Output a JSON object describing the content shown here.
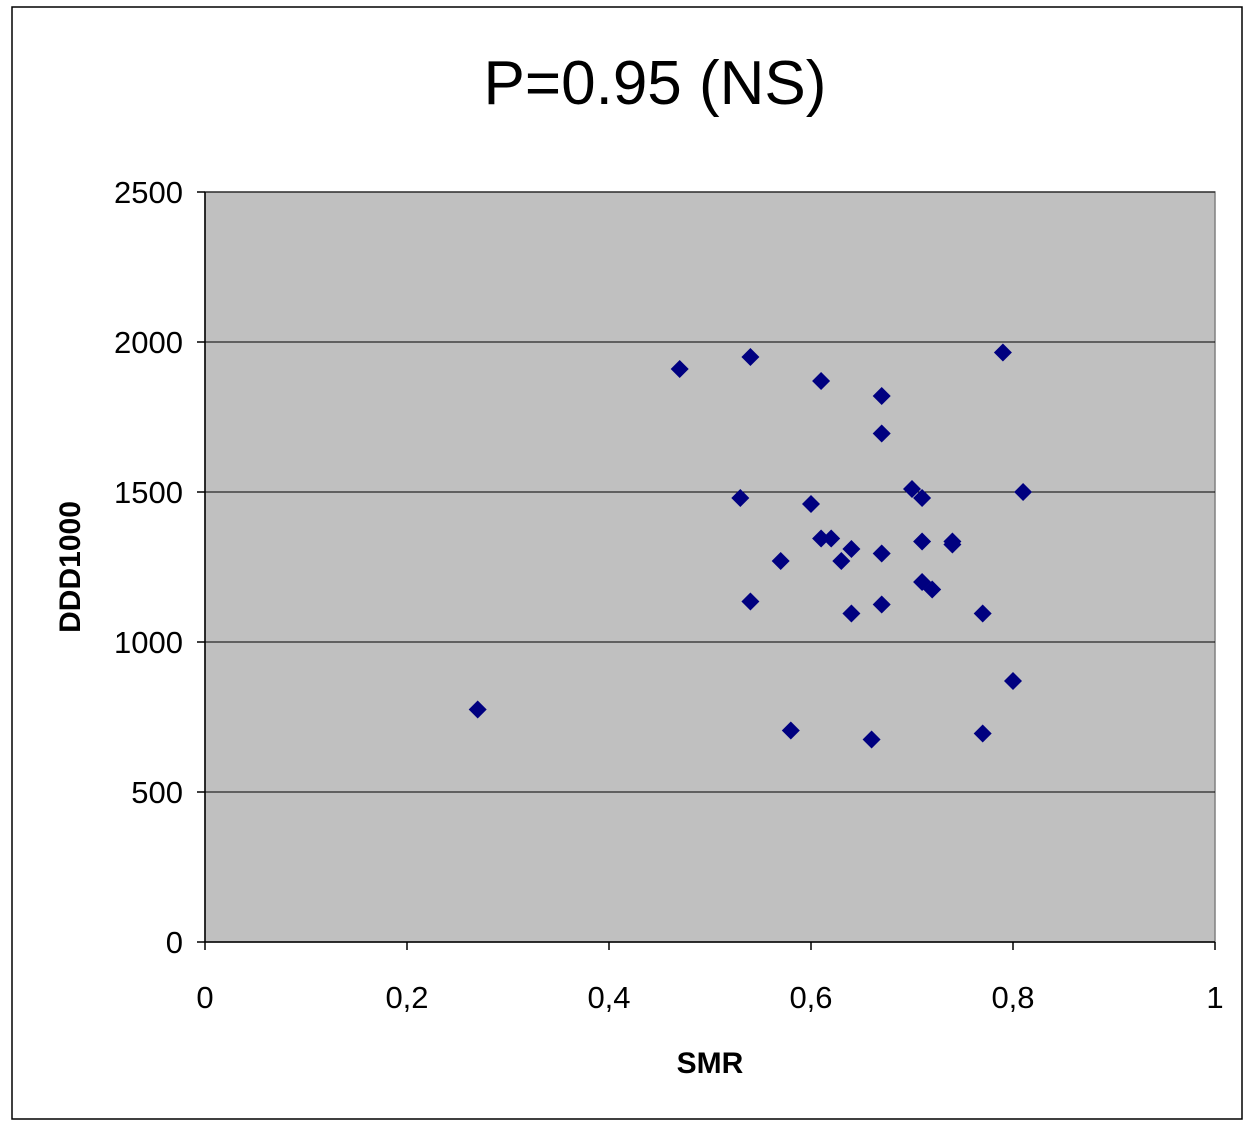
{
  "chart_data": {
    "type": "scatter",
    "title": "P=0.95 (NS)",
    "xlabel": "SMR",
    "ylabel": "DDD1000",
    "xlim": [
      0,
      1
    ],
    "ylim": [
      0,
      2500
    ],
    "xticks": [
      "0",
      "0,2",
      "0,4",
      "0,6",
      "0,8",
      "1"
    ],
    "yticks": [
      "0",
      "500",
      "1000",
      "1500",
      "2000",
      "2500"
    ],
    "grid": "horizontal",
    "legend": "none",
    "colors": {
      "marker": "#000080",
      "plot_background": "#c0c0c0",
      "gridline": "#000000"
    },
    "points": [
      {
        "x": 0.27,
        "y": 775
      },
      {
        "x": 0.47,
        "y": 1910
      },
      {
        "x": 0.53,
        "y": 1480
      },
      {
        "x": 0.54,
        "y": 1950
      },
      {
        "x": 0.54,
        "y": 1135
      },
      {
        "x": 0.57,
        "y": 1270
      },
      {
        "x": 0.58,
        "y": 705
      },
      {
        "x": 0.6,
        "y": 1460
      },
      {
        "x": 0.61,
        "y": 1870
      },
      {
        "x": 0.61,
        "y": 1345
      },
      {
        "x": 0.62,
        "y": 1345
      },
      {
        "x": 0.63,
        "y": 1270
      },
      {
        "x": 0.64,
        "y": 1310
      },
      {
        "x": 0.64,
        "y": 1095
      },
      {
        "x": 0.66,
        "y": 675
      },
      {
        "x": 0.67,
        "y": 1820
      },
      {
        "x": 0.67,
        "y": 1695
      },
      {
        "x": 0.67,
        "y": 1295
      },
      {
        "x": 0.67,
        "y": 1125
      },
      {
        "x": 0.7,
        "y": 1510
      },
      {
        "x": 0.71,
        "y": 1480
      },
      {
        "x": 0.71,
        "y": 1335
      },
      {
        "x": 0.71,
        "y": 1200
      },
      {
        "x": 0.72,
        "y": 1175
      },
      {
        "x": 0.74,
        "y": 1335
      },
      {
        "x": 0.74,
        "y": 1325
      },
      {
        "x": 0.77,
        "y": 1095
      },
      {
        "x": 0.77,
        "y": 695
      },
      {
        "x": 0.79,
        "y": 1965
      },
      {
        "x": 0.8,
        "y": 870
      },
      {
        "x": 0.81,
        "y": 1500
      }
    ]
  }
}
